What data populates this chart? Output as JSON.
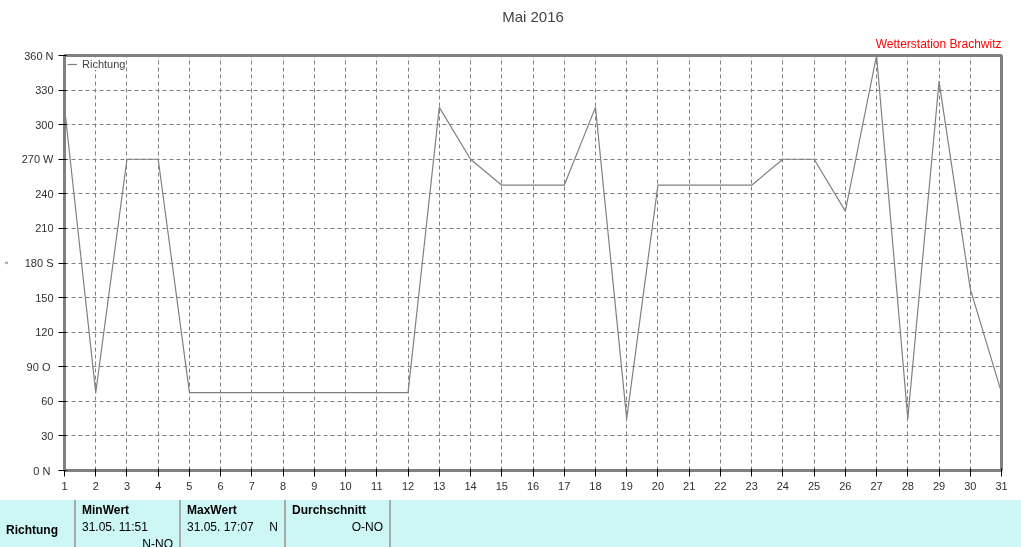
{
  "chart_data": {
    "type": "line",
    "title": "Mai 2016",
    "ylabel": "°",
    "annotations": [
      "Wetterstation Brachwitz",
      "Richtung",
      "MinWert",
      "31.05.  11:51",
      "N-NO",
      "MaxWert",
      "31.05.  17:07",
      "N",
      "Durchschnitt",
      "O-NO"
    ],
    "x": [
      1,
      2,
      3,
      4,
      5,
      6,
      7,
      8,
      9,
      10,
      11,
      12,
      13,
      14,
      15,
      16,
      17,
      18,
      19,
      20,
      21,
      22,
      23,
      24,
      25,
      26,
      27,
      28,
      29,
      30,
      31
    ],
    "series": [
      {
        "name": "Richtung",
        "color": "#808080",
        "values": [
          315,
          67.5,
          270,
          270,
          67.5,
          67.5,
          67.5,
          67.5,
          67.5,
          67.5,
          67.5,
          67.5,
          315,
          270,
          247.5,
          247.5,
          247.5,
          315,
          45,
          247.5,
          247.5,
          247.5,
          247.5,
          270,
          270,
          225,
          360,
          45,
          337.5,
          157.5,
          67.5
        ]
      }
    ],
    "xlim": [
      1,
      31
    ],
    "xticks": [
      1,
      2,
      3,
      4,
      5,
      6,
      7,
      8,
      9,
      10,
      11,
      12,
      13,
      14,
      15,
      16,
      17,
      18,
      19,
      20,
      21,
      22,
      23,
      24,
      25,
      26,
      27,
      28,
      29,
      30,
      31
    ],
    "ylim": [
      0,
      360
    ],
    "yticks": [
      {
        "value": 0,
        "label": "0  N"
      },
      30,
      60,
      {
        "value": 90,
        "label": "90  O"
      },
      120,
      150,
      {
        "value": 180,
        "label": "180 S"
      },
      210,
      240,
      {
        "value": 270,
        "label": "270 W"
      },
      300,
      330,
      {
        "value": 360,
        "label": "360 N"
      }
    ],
    "grid": true,
    "legend": "top left",
    "marker": "none",
    "line_style": "solid"
  }
}
